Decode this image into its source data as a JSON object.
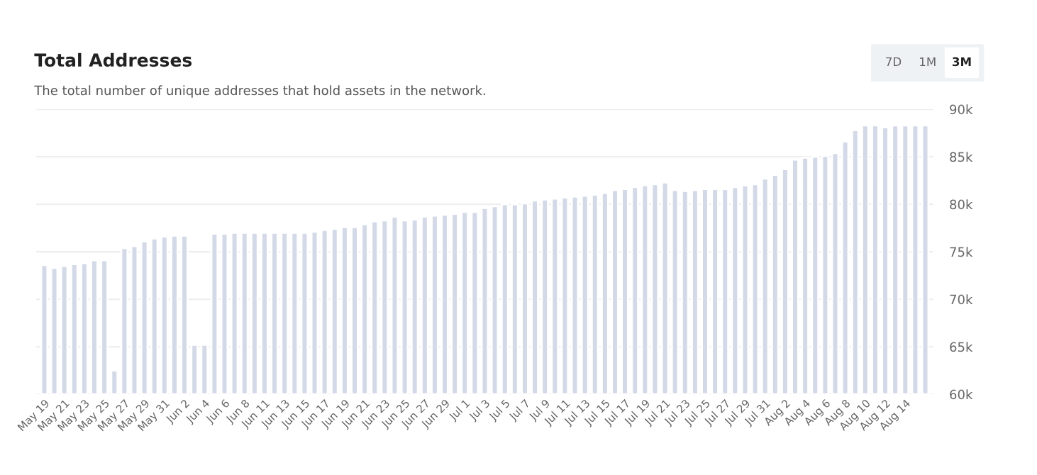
{
  "chart_data": {
    "type": "bar",
    "title": "Total Addresses",
    "subtitle": "The total number of unique addresses that hold assets in the network.",
    "annotations": [
      "7D",
      "1M",
      "3M"
    ],
    "categories": [
      "May 19",
      null,
      "May 21",
      null,
      "May 23",
      null,
      "May 25",
      null,
      "May 27",
      null,
      "May 29",
      null,
      "May 31",
      null,
      "Jun 2",
      null,
      "Jun 4",
      null,
      "Jun 6",
      null,
      "Jun 8",
      null,
      "Jun 11",
      null,
      "Jun 13",
      null,
      "Jun 15",
      null,
      "Jun 17",
      null,
      "Jun 19",
      null,
      "Jun 21",
      null,
      "Jun 23",
      null,
      "Jun 25",
      null,
      "Jun 27",
      null,
      "Jun 29",
      null,
      "Jul 1",
      null,
      "Jul 3",
      null,
      "Jul 5",
      null,
      "Jul 7",
      null,
      "Jul 9",
      null,
      "Jul 11",
      null,
      "Jul 13",
      null,
      "Jul 15",
      null,
      "Jul 17",
      null,
      "Jul 19",
      null,
      "Jul 21",
      null,
      "Jul 23",
      null,
      "Jul 25",
      null,
      "Jul 27",
      null,
      "Jul 29",
      null,
      "Jul 31",
      null,
      "Aug 2",
      null,
      "Aug 4",
      null,
      "Aug 6",
      null,
      "Aug 8",
      null,
      "Aug 10",
      null,
      "Aug 12",
      null,
      "Aug 14",
      null,
      null
    ],
    "values": [
      73.6,
      73.3,
      73.5,
      73.7,
      73.8,
      74.1,
      74.1,
      62.5,
      75.4,
      75.6,
      76.1,
      76.4,
      76.6,
      76.7,
      76.7,
      65.2,
      65.2,
      76.9,
      76.9,
      77.0,
      77.0,
      77.0,
      77.0,
      77.0,
      77.0,
      77.0,
      77.0,
      77.1,
      77.3,
      77.4,
      77.6,
      77.6,
      77.9,
      78.2,
      78.3,
      78.7,
      78.3,
      78.4,
      78.7,
      78.8,
      78.9,
      79.0,
      79.2,
      79.2,
      79.6,
      79.8,
      80.0,
      80.0,
      80.1,
      80.4,
      80.5,
      80.6,
      80.7,
      80.8,
      80.9,
      81.0,
      81.2,
      81.5,
      81.6,
      81.8,
      82.0,
      82.1,
      82.3,
      81.5,
      81.4,
      81.5,
      81.6,
      81.6,
      81.6,
      81.8,
      82.0,
      82.1,
      82.7,
      83.1,
      83.7,
      84.7,
      84.9,
      85.0,
      85.1,
      85.4,
      86.6,
      87.8,
      88.3,
      88.3,
      88.1,
      88.3,
      88.3,
      88.3,
      88.3
    ],
    "color": "#d3d9e6",
    "ylim": [
      60,
      90
    ],
    "yticks": [
      {
        "value": 60,
        "label": "60k"
      },
      {
        "value": 65,
        "label": "65k"
      },
      {
        "value": 70,
        "label": "70k"
      },
      {
        "value": 75,
        "label": "75k"
      },
      {
        "value": 80,
        "label": "80k"
      },
      {
        "value": 85,
        "label": "85k"
      },
      {
        "value": 90,
        "label": "90k"
      }
    ],
    "grid": "y",
    "legend": false
  }
}
